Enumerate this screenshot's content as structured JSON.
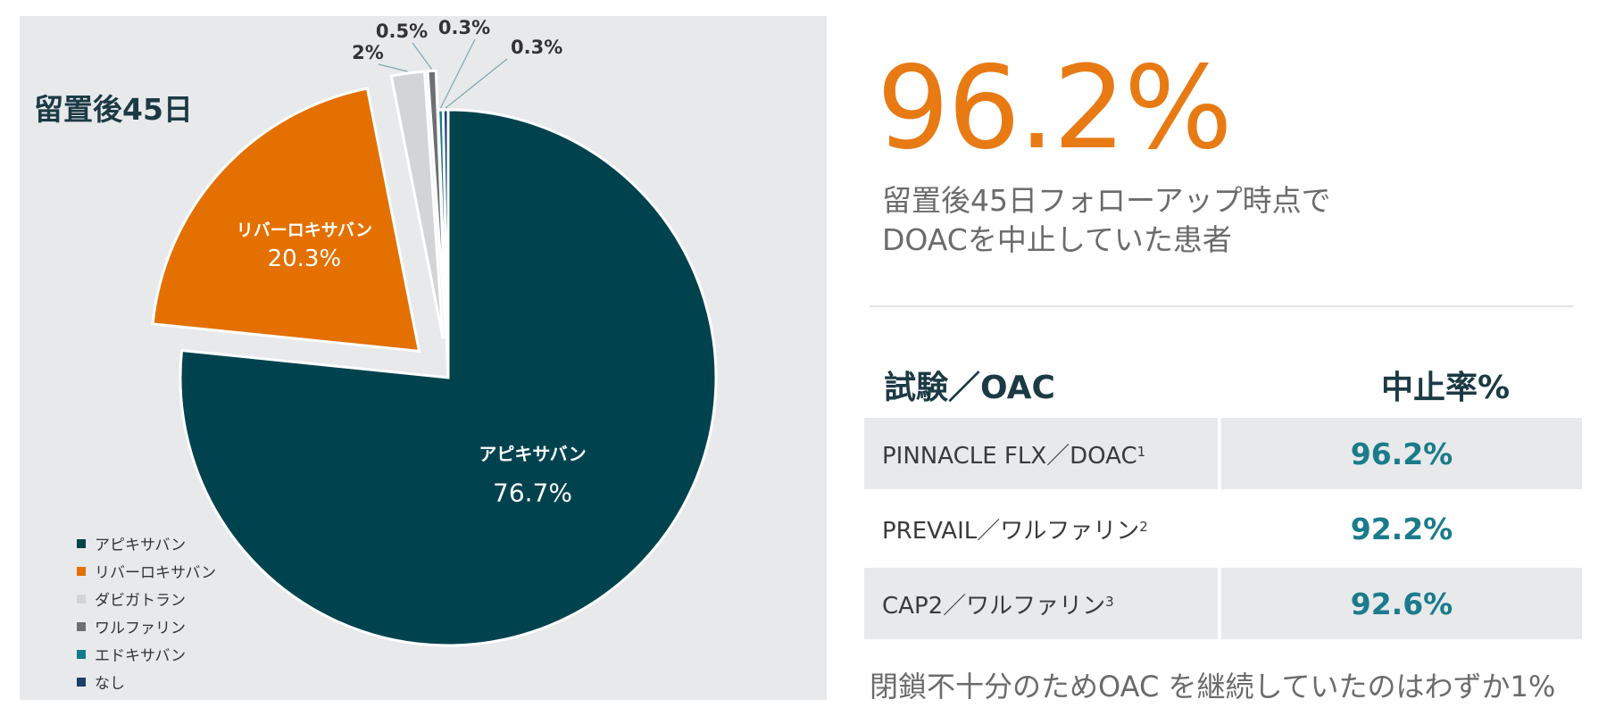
{
  "chart_data": {
    "type": "pie",
    "title": "留置後45日",
    "slices": [
      {
        "label": "アピキサバン",
        "value": 76.7,
        "display": "76.7%",
        "color": "#00434f",
        "exploded": false
      },
      {
        "label": "リバーロキサバン",
        "value": 20.3,
        "display": "20.3%",
        "color": "#e37000",
        "exploded": true
      },
      {
        "label": "ダビガトラン",
        "value": 2,
        "display": "2%",
        "color": "#d3d4d6",
        "exploded": true
      },
      {
        "label": "ワルファリン",
        "value": 0.5,
        "display": "0.5%",
        "color": "#6e6f72",
        "exploded": true
      },
      {
        "label": "エドキサバン",
        "value": 0.3,
        "display": "0.3%",
        "color": "#137b8c",
        "exploded": false
      },
      {
        "label": "なし",
        "value": 0.3,
        "display": "0.3%",
        "color": "#1b3e6b",
        "exploded": false
      }
    ],
    "legend_placement": "bottom-left"
  },
  "stat": {
    "value": "96.2%",
    "caption_line1": "留置後45日フォローアップ時点で",
    "caption_line2": "DOACを中止していた患者"
  },
  "table": {
    "header_left": "試験／OAC",
    "header_right": "中止率%",
    "rows": [
      {
        "study": "PINNACLE FLX／DOAC",
        "sup": "1",
        "rate": "96.2%"
      },
      {
        "study": "PREVAIL／ワルファリン",
        "sup": "2",
        "rate": "92.2%"
      },
      {
        "study": "CAP2／ワルファリン",
        "sup": "3",
        "rate": "92.6%"
      }
    ]
  },
  "footnote": "閉鎖不十分のためOAC を継続していたのはわずか1%"
}
